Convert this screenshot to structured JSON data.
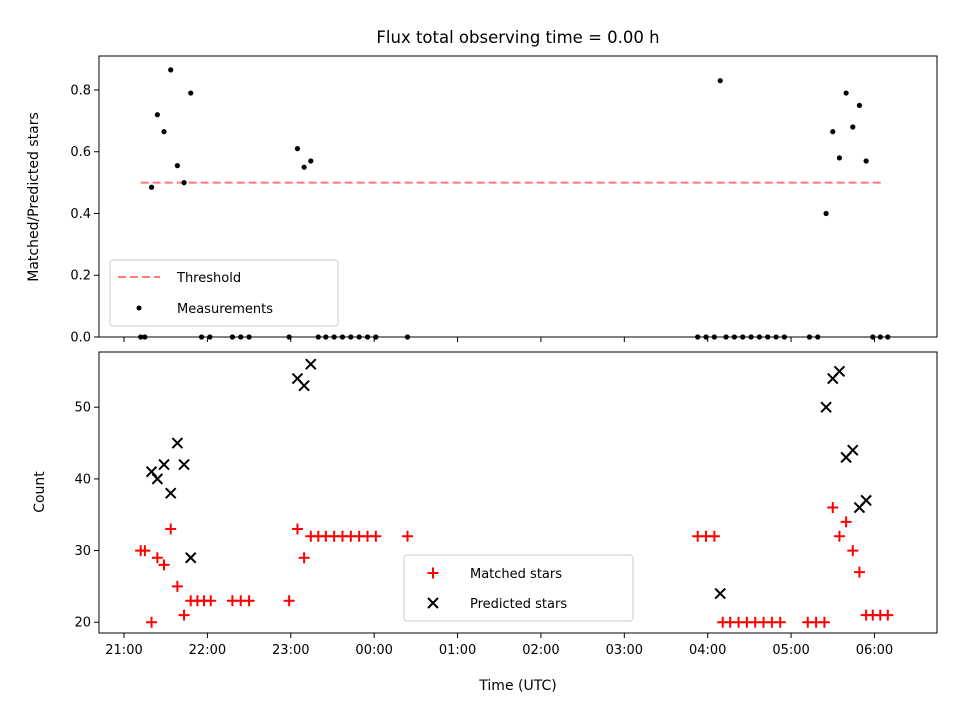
{
  "chart_data": [
    {
      "type": "scatter",
      "title": "Flux total observing time = 0.00 h",
      "xlabel": "",
      "ylabel": "Matched/Predicted stars",
      "ylim": [
        0,
        0.91
      ],
      "xlim_hours": [
        20.7,
        30.75
      ],
      "y_ticks": [
        {
          "v": 0.0,
          "label": "0.0"
        },
        {
          "v": 0.2,
          "label": "0.2"
        },
        {
          "v": 0.4,
          "label": "0.4"
        },
        {
          "v": 0.6,
          "label": "0.6"
        },
        {
          "v": 0.8,
          "label": "0.8"
        }
      ],
      "legend_location": "lower-left",
      "threshold": {
        "name": "Threshold",
        "value": 0.5,
        "x_range_hours": [
          21.2,
          30.1
        ],
        "color": "#ff7878"
      },
      "measurements": {
        "name": "Measurements",
        "color": "#000000",
        "points": [
          [
            21.2,
            0
          ],
          [
            21.25,
            0
          ],
          [
            21.33,
            0.485
          ],
          [
            21.4,
            0.72
          ],
          [
            21.48,
            0.665
          ],
          [
            21.56,
            0.865
          ],
          [
            21.64,
            0.555
          ],
          [
            21.72,
            0.5
          ],
          [
            21.8,
            0.79
          ],
          [
            21.93,
            0
          ],
          [
            22.03,
            0
          ],
          [
            22.3,
            0
          ],
          [
            22.4,
            0
          ],
          [
            22.5,
            0
          ],
          [
            22.98,
            0
          ],
          [
            23.08,
            0.61
          ],
          [
            23.16,
            0.55
          ],
          [
            23.24,
            0.57
          ],
          [
            23.33,
            0
          ],
          [
            23.42,
            0
          ],
          [
            23.52,
            0
          ],
          [
            23.62,
            0
          ],
          [
            23.72,
            0
          ],
          [
            23.82,
            0
          ],
          [
            23.92,
            0
          ],
          [
            24.02,
            0
          ],
          [
            24.4,
            0
          ],
          [
            27.88,
            0
          ],
          [
            27.98,
            0
          ],
          [
            28.08,
            0
          ],
          [
            28.15,
            0.83
          ],
          [
            28.22,
            0
          ],
          [
            28.32,
            0
          ],
          [
            28.42,
            0
          ],
          [
            28.52,
            0
          ],
          [
            28.62,
            0
          ],
          [
            28.72,
            0
          ],
          [
            28.82,
            0
          ],
          [
            28.92,
            0
          ],
          [
            29.22,
            0
          ],
          [
            29.32,
            0
          ],
          [
            29.42,
            0.4
          ],
          [
            29.5,
            0.665
          ],
          [
            29.58,
            0.58
          ],
          [
            29.66,
            0.79
          ],
          [
            29.74,
            0.68
          ],
          [
            29.82,
            0.75
          ],
          [
            29.9,
            0.57
          ],
          [
            29.98,
            0
          ],
          [
            30.07,
            0
          ],
          [
            30.16,
            0
          ]
        ]
      }
    },
    {
      "type": "scatter",
      "title": "",
      "xlabel": "Time (UTC)",
      "ylabel": "Count",
      "ylim": [
        18.5,
        57.7
      ],
      "xlim_hours": [
        20.7,
        30.75
      ],
      "y_ticks": [
        {
          "v": 20,
          "label": "20"
        },
        {
          "v": 30,
          "label": "30"
        },
        {
          "v": 40,
          "label": "40"
        },
        {
          "v": 50,
          "label": "50"
        }
      ],
      "x_ticks": [
        {
          "h": 21,
          "label": "21:00"
        },
        {
          "h": 22,
          "label": "22:00"
        },
        {
          "h": 23,
          "label": "23:00"
        },
        {
          "h": 24,
          "label": "00:00"
        },
        {
          "h": 25,
          "label": "01:00"
        },
        {
          "h": 26,
          "label": "02:00"
        },
        {
          "h": 27,
          "label": "03:00"
        },
        {
          "h": 28,
          "label": "04:00"
        },
        {
          "h": 29,
          "label": "05:00"
        },
        {
          "h": 30,
          "label": "06:00"
        }
      ],
      "legend_location": "lower-center",
      "series": [
        {
          "name": "Matched stars",
          "marker": "plus",
          "color": "#ff0000",
          "points": [
            [
              21.2,
              30
            ],
            [
              21.25,
              30
            ],
            [
              21.33,
              20
            ],
            [
              21.4,
              29
            ],
            [
              21.48,
              28
            ],
            [
              21.56,
              33
            ],
            [
              21.64,
              25
            ],
            [
              21.72,
              21
            ],
            [
              21.8,
              23
            ],
            [
              21.88,
              23
            ],
            [
              21.96,
              23
            ],
            [
              22.04,
              23
            ],
            [
              22.3,
              23
            ],
            [
              22.4,
              23
            ],
            [
              22.5,
              23
            ],
            [
              22.98,
              23
            ],
            [
              23.08,
              33
            ],
            [
              23.16,
              29
            ],
            [
              23.24,
              32
            ],
            [
              23.33,
              32
            ],
            [
              23.42,
              32
            ],
            [
              23.52,
              32
            ],
            [
              23.62,
              32
            ],
            [
              23.72,
              32
            ],
            [
              23.82,
              32
            ],
            [
              23.92,
              32
            ],
            [
              24.02,
              32
            ],
            [
              24.4,
              32
            ],
            [
              27.88,
              32
            ],
            [
              27.98,
              32
            ],
            [
              28.08,
              32
            ],
            [
              28.18,
              20
            ],
            [
              28.27,
              20
            ],
            [
              28.37,
              20
            ],
            [
              28.47,
              20
            ],
            [
              28.57,
              20
            ],
            [
              28.67,
              20
            ],
            [
              28.77,
              20
            ],
            [
              28.87,
              20
            ],
            [
              29.2,
              20
            ],
            [
              29.3,
              20
            ],
            [
              29.4,
              20
            ],
            [
              29.5,
              36
            ],
            [
              29.58,
              32
            ],
            [
              29.66,
              34
            ],
            [
              29.74,
              30
            ],
            [
              29.82,
              27
            ],
            [
              29.9,
              21
            ],
            [
              29.98,
              21
            ],
            [
              30.07,
              21
            ],
            [
              30.16,
              21
            ]
          ]
        },
        {
          "name": "Predicted stars",
          "marker": "x",
          "color": "#000000",
          "points": [
            [
              21.33,
              41
            ],
            [
              21.4,
              40
            ],
            [
              21.48,
              42
            ],
            [
              21.56,
              38
            ],
            [
              21.64,
              45
            ],
            [
              21.72,
              42
            ],
            [
              21.8,
              29
            ],
            [
              23.08,
              54
            ],
            [
              23.16,
              53
            ],
            [
              23.24,
              56
            ],
            [
              28.15,
              24
            ],
            [
              29.42,
              50
            ],
            [
              29.5,
              54
            ],
            [
              29.58,
              55
            ],
            [
              29.66,
              43
            ],
            [
              29.74,
              44
            ],
            [
              29.82,
              36
            ],
            [
              29.9,
              37
            ]
          ]
        }
      ]
    }
  ]
}
